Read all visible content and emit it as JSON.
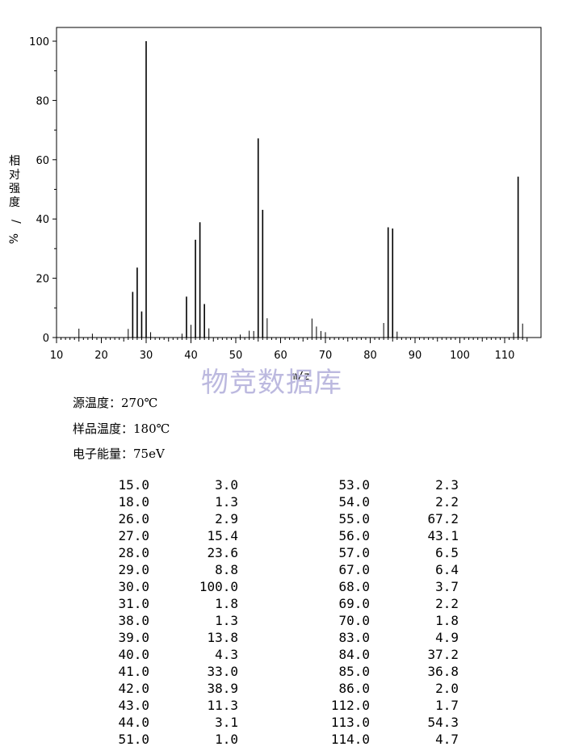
{
  "chart_data": {
    "type": "bar",
    "xlabel": "m/z",
    "ylabel": "相对强度/%",
    "xlim": [
      10,
      116
    ],
    "ylim": [
      0,
      105
    ],
    "x_ticks": [
      10,
      20,
      30,
      40,
      50,
      60,
      70,
      80,
      90,
      100,
      110
    ],
    "y_ticks": [
      0,
      20,
      40,
      60,
      80,
      100
    ],
    "x": [
      15,
      18,
      26,
      27,
      28,
      29,
      30,
      31,
      38,
      39,
      40,
      41,
      42,
      43,
      44,
      51,
      53,
      54,
      55,
      56,
      57,
      67,
      68,
      69,
      70,
      83,
      84,
      85,
      86,
      112,
      113,
      114
    ],
    "values": [
      3.0,
      1.3,
      2.9,
      15.4,
      23.6,
      8.8,
      100.0,
      1.8,
      1.3,
      13.8,
      4.3,
      33.0,
      38.9,
      11.3,
      3.1,
      1.0,
      2.3,
      2.2,
      67.2,
      43.1,
      6.5,
      6.4,
      3.7,
      2.2,
      1.8,
      4.9,
      37.2,
      36.8,
      2.0,
      1.7,
      54.3,
      4.7
    ]
  },
  "watermark": "物竞数据库",
  "conditions": [
    {
      "label": "源温度：",
      "value": "270℃"
    },
    {
      "label": "样品温度：",
      "value": "180℃"
    },
    {
      "label": "电子能量：",
      "value": "75eV"
    }
  ],
  "peak_table": {
    "left": [
      [
        "15.0",
        "3.0"
      ],
      [
        "18.0",
        "1.3"
      ],
      [
        "26.0",
        "2.9"
      ],
      [
        "27.0",
        "15.4"
      ],
      [
        "28.0",
        "23.6"
      ],
      [
        "29.0",
        "8.8"
      ],
      [
        "30.0",
        "100.0"
      ],
      [
        "31.0",
        "1.8"
      ],
      [
        "38.0",
        "1.3"
      ],
      [
        "39.0",
        "13.8"
      ],
      [
        "40.0",
        "4.3"
      ],
      [
        "41.0",
        "33.0"
      ],
      [
        "42.0",
        "38.9"
      ],
      [
        "43.0",
        "11.3"
      ],
      [
        "44.0",
        "3.1"
      ],
      [
        "51.0",
        "1.0"
      ]
    ],
    "right": [
      [
        "53.0",
        "2.3"
      ],
      [
        "54.0",
        "2.2"
      ],
      [
        "55.0",
        "67.2"
      ],
      [
        "56.0",
        "43.1"
      ],
      [
        "57.0",
        "6.5"
      ],
      [
        "67.0",
        "6.4"
      ],
      [
        "68.0",
        "3.7"
      ],
      [
        "69.0",
        "2.2"
      ],
      [
        "70.0",
        "1.8"
      ],
      [
        "83.0",
        "4.9"
      ],
      [
        "84.0",
        "37.2"
      ],
      [
        "85.0",
        "36.8"
      ],
      [
        "86.0",
        "2.0"
      ],
      [
        "112.0",
        "1.7"
      ],
      [
        "113.0",
        "54.3"
      ],
      [
        "114.0",
        "4.7"
      ]
    ]
  }
}
